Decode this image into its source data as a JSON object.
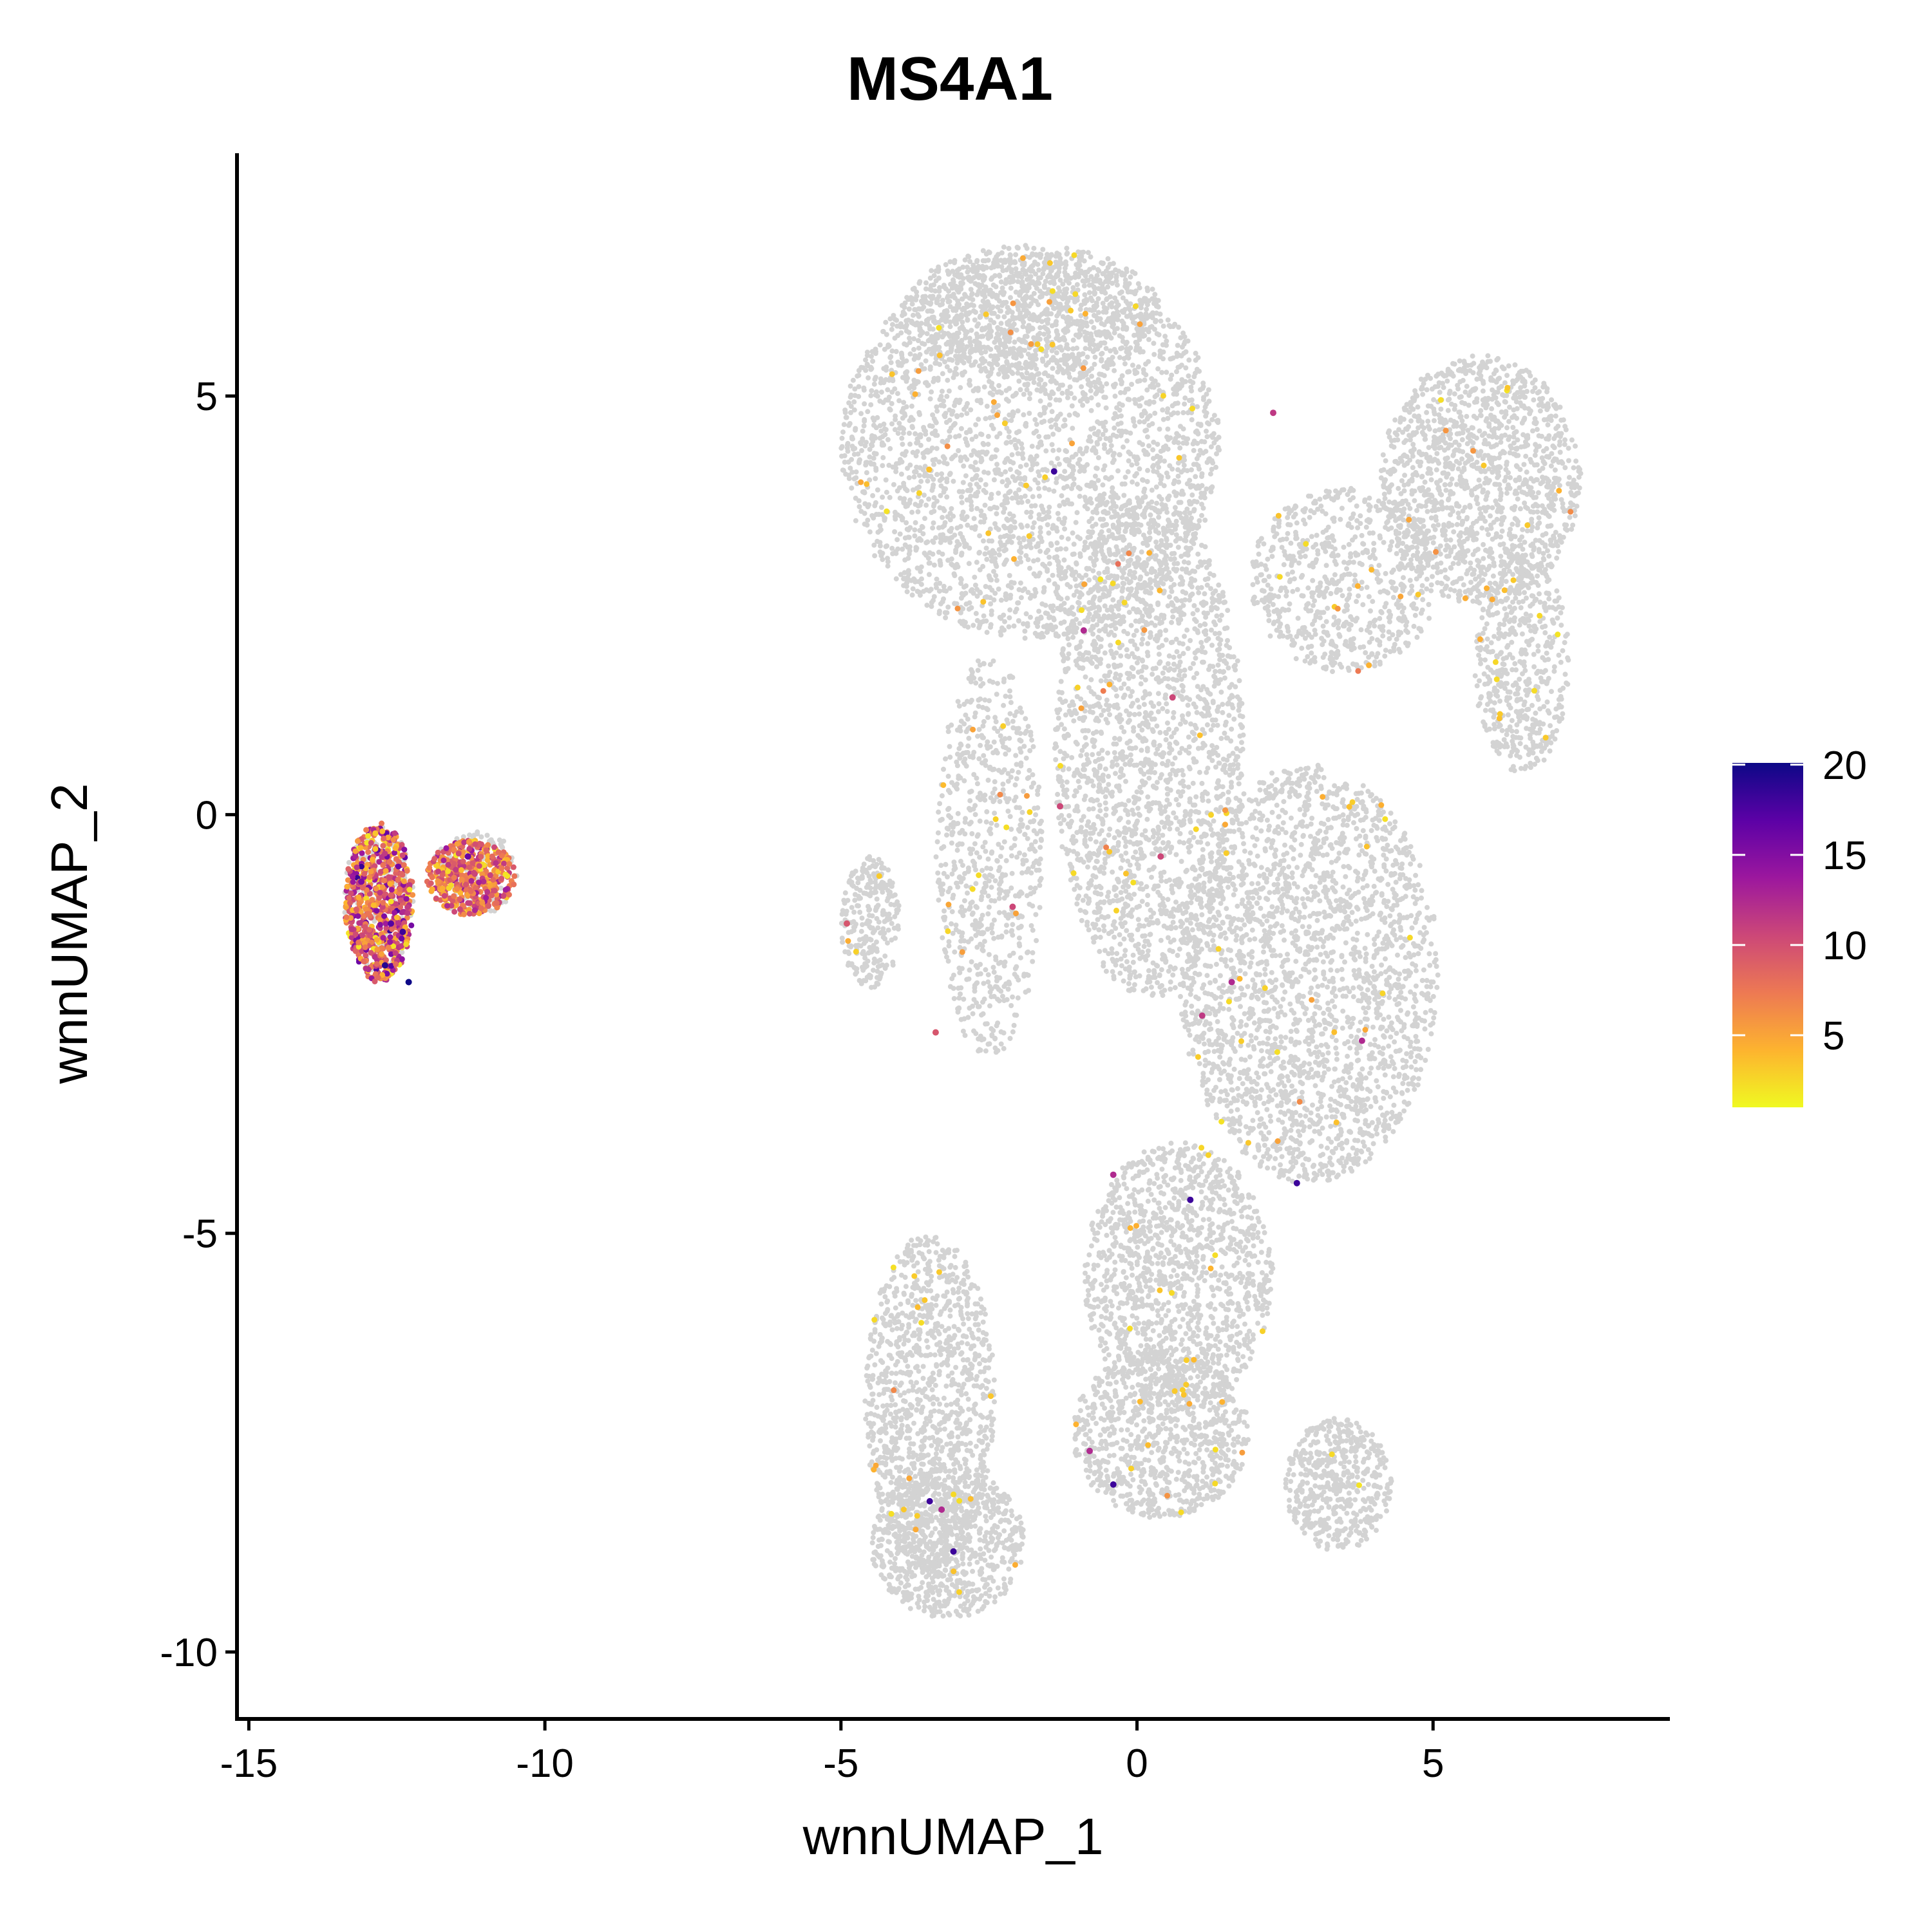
{
  "chart_data": {
    "type": "scatter",
    "title": "MS4A1",
    "xlabel": "wnnUMAP_1",
    "ylabel": "wnnUMAP_2",
    "xlim": [
      -15.2,
      9.0
    ],
    "ylim": [
      -10.8,
      7.9
    ],
    "x_ticks": [
      -15,
      -10,
      -5,
      0,
      5
    ],
    "x_tick_labels": [
      "-15",
      "-10",
      "-5",
      "0",
      "5"
    ],
    "y_ticks": [
      -10,
      -5,
      0,
      5
    ],
    "y_tick_labels": [
      "-10",
      "-5",
      "0",
      "5"
    ],
    "grid": false,
    "background_color": "#d3d3d3",
    "colorbar": {
      "min": 0,
      "max": 20,
      "ticks": [
        5,
        10,
        15,
        20
      ],
      "tick_labels": [
        "5",
        "10",
        "15",
        "20"
      ],
      "colormap": "plasma-reversed",
      "stops": [
        "#f0f921",
        "#fdb32f",
        "#ed7953",
        "#cc4778",
        "#9c179e",
        "#5c01a6",
        "#0d0887"
      ],
      "legend_placement": "right"
    },
    "background_regions": [
      {
        "region": "upper-left lobe",
        "cx": -1.8,
        "cy": 4.4,
        "rx": 3.2,
        "ry": 2.3,
        "n": 3000
      },
      {
        "region": "top cap",
        "cx": -1.8,
        "cy": 6.0,
        "rx": 2.2,
        "ry": 0.8,
        "n": 800
      },
      {
        "region": "upper-right arm",
        "cx": 5.8,
        "cy": 4.0,
        "rx": 1.7,
        "ry": 1.5,
        "n": 1400
      },
      {
        "region": "arm connection",
        "cx": 3.5,
        "cy": 2.8,
        "rx": 1.6,
        "ry": 1.1,
        "n": 700
      },
      {
        "region": "arm tail",
        "cx": 6.5,
        "cy": 1.8,
        "rx": 0.8,
        "ry": 1.3,
        "n": 500
      },
      {
        "region": "central column",
        "cx": 0.2,
        "cy": 0.8,
        "rx": 1.6,
        "ry": 3.0,
        "n": 2000
      },
      {
        "region": "right middle lobe",
        "cx": 2.9,
        "cy": -1.9,
        "rx": 2.2,
        "ry": 2.5,
        "n": 2400
      },
      {
        "region": "left column",
        "cx": -2.5,
        "cy": -0.5,
        "rx": 0.9,
        "ry": 2.4,
        "n": 700
      },
      {
        "region": "far left protrusion",
        "cx": -4.5,
        "cy": -1.3,
        "rx": 0.5,
        "ry": 0.8,
        "n": 250
      },
      {
        "region": "lower center",
        "cx": 0.7,
        "cy": -5.5,
        "rx": 1.6,
        "ry": 1.6,
        "n": 1300
      },
      {
        "region": "lower connection",
        "cx": 0.4,
        "cy": -7.4,
        "rx": 1.5,
        "ry": 1.0,
        "n": 900
      },
      {
        "region": "lower left",
        "cx": -3.5,
        "cy": -7.0,
        "rx": 1.1,
        "ry": 2.0,
        "n": 1200
      },
      {
        "region": "bottom left lobe",
        "cx": -3.2,
        "cy": -8.7,
        "rx": 1.3,
        "ry": 0.9,
        "n": 800
      },
      {
        "region": "bottom right",
        "cx": 3.4,
        "cy": -8.0,
        "rx": 0.9,
        "ry": 0.8,
        "n": 500
      },
      {
        "region": "isolated b-cell cluster left",
        "cx": -12.8,
        "cy": -1.0,
        "rx": 0.6,
        "ry": 0.9,
        "n": 200
      },
      {
        "region": "isolated b-cell cluster right",
        "cx": -11.2,
        "cy": -0.7,
        "rx": 0.8,
        "ry": 0.5,
        "n": 150
      }
    ],
    "expressing_clusters": [
      {
        "region": "b-cell cluster left",
        "cx": -12.8,
        "cy": -1.05,
        "rx": 0.58,
        "ry": 0.95,
        "n": 650,
        "mean": 8,
        "spread": 4
      },
      {
        "region": "b-cell cluster right",
        "cx": -11.25,
        "cy": -0.75,
        "rx": 0.75,
        "ry": 0.45,
        "n": 420,
        "mean": 7,
        "spread": 3
      }
    ],
    "notable_points": [
      {
        "x": -12.3,
        "y": -2.0,
        "value": 20
      },
      {
        "x": -12.7,
        "y": -1.8,
        "value": 19
      },
      {
        "x": -12.4,
        "y": -1.4,
        "value": 18
      },
      {
        "x": -12.6,
        "y": -1.3,
        "value": 17
      },
      {
        "x": -11.3,
        "y": -0.5,
        "value": 16
      },
      {
        "x": -13.1,
        "y": -0.8,
        "value": 15
      },
      {
        "x": -1.4,
        "y": 4.1,
        "value": 18
      },
      {
        "x": 0.9,
        "y": -4.6,
        "value": 18
      },
      {
        "x": 2.7,
        "y": -4.4,
        "value": 18
      },
      {
        "x": -3.5,
        "y": -8.2,
        "value": 18
      },
      {
        "x": -3.1,
        "y": -8.8,
        "value": 18
      },
      {
        "x": -0.4,
        "y": -8.0,
        "value": 18
      },
      {
        "x": -0.4,
        "y": -4.3,
        "value": 12
      },
      {
        "x": -0.8,
        "y": -7.6,
        "value": 12
      },
      {
        "x": 1.6,
        "y": -2.0,
        "value": 12
      },
      {
        "x": 3.8,
        "y": -2.7,
        "value": 12
      },
      {
        "x": 2.3,
        "y": 4.8,
        "value": 11
      },
      {
        "x": -0.9,
        "y": 2.2,
        "value": 12
      },
      {
        "x": -3.3,
        "y": -8.3,
        "value": 12
      },
      {
        "x": 1.1,
        "y": -2.4,
        "value": 11
      },
      {
        "x": 0.4,
        "y": -0.5,
        "value": 10
      },
      {
        "x": -2.1,
        "y": -1.1,
        "value": 10
      },
      {
        "x": -4.9,
        "y": -1.3,
        "value": 9
      },
      {
        "x": -3.4,
        "y": -2.6,
        "value": 9
      },
      {
        "x": 0.6,
        "y": 1.4,
        "value": 10
      },
      {
        "x": -1.3,
        "y": 0.1,
        "value": 10
      }
    ],
    "scattered_low_count": 200
  }
}
